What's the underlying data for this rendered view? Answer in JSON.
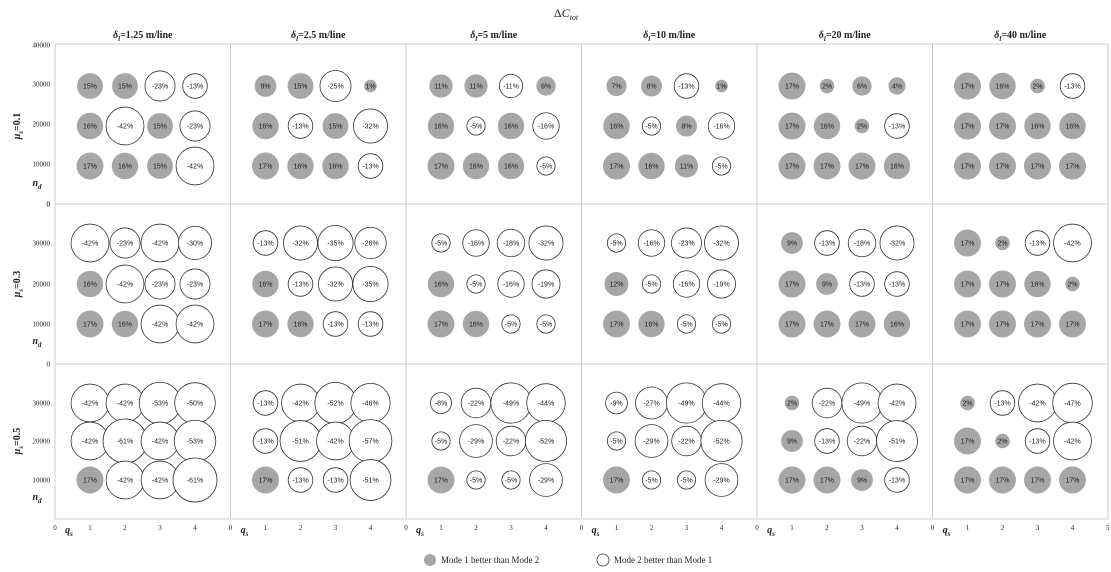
{
  "chart_data": {
    "type": "bubble-grid",
    "title": "ΔC_tot",
    "column_titles": [
      "δl=1.25 m/line",
      "δl=2.5 m/line",
      "δl=5 m/line",
      "δl=10 m/line",
      "δl=20 m/line",
      "δl=40 m/line"
    ],
    "column_title_parts": [
      {
        "sym": "δ",
        "sub": "l",
        "rest": "=1.25 m/line"
      },
      {
        "sym": "δ",
        "sub": "l",
        "rest": "=2.5 m/line"
      },
      {
        "sym": "δ",
        "sub": "l",
        "rest": "=5 m/line"
      },
      {
        "sym": "δ",
        "sub": "l",
        "rest": "=10 m/line"
      },
      {
        "sym": "δ",
        "sub": "l",
        "rest": "=20 m/line"
      },
      {
        "sym": "δ",
        "sub": "l",
        "rest": "=40 m/line"
      }
    ],
    "row_titles": [
      {
        "sym": "μ",
        "sub": "s",
        "rest": "=0.1"
      },
      {
        "sym": "μ",
        "sub": "s",
        "rest": "=0.3"
      },
      {
        "sym": "μ",
        "sub": "s",
        "rest": "=0.5"
      }
    ],
    "xlabel": {
      "sym": "q",
      "sub": "s"
    },
    "ylabel": {
      "sym": "n",
      "sub": "d"
    },
    "x_ticks": [
      0,
      1,
      2,
      3,
      4
    ],
    "x_ticks_last": [
      0,
      1,
      2,
      3,
      4,
      5
    ],
    "xlim": [
      0,
      5
    ],
    "y_ticks_top": [
      "0",
      "10000",
      "20000",
      "30000",
      "40000"
    ],
    "y_ticks": [
      "0",
      "10000",
      "20000",
      "30000"
    ],
    "y_levels": [
      30000,
      20000,
      10000
    ],
    "legend": [
      {
        "label": "Mode 1 better than Mode 2",
        "filled": true
      },
      {
        "label": "Mode 2 better than Mode 1",
        "filled": false
      }
    ],
    "colors": {
      "mode1": "#a6a6a6",
      "mode2": "#ffffff",
      "stroke": "#555555",
      "grid": "#cccccc"
    },
    "values": [
      [
        [
          [
            "15%",
            "15%",
            "-23%",
            "-13%"
          ],
          [
            "16%",
            "-42%",
            "15%",
            "-23%"
          ],
          [
            "17%",
            "16%",
            "15%",
            "-42%"
          ]
        ],
        [
          [
            "9%",
            "15%",
            "-25%",
            "1%"
          ],
          [
            "16%",
            "-13%",
            "15%",
            "-32%"
          ],
          [
            "17%",
            "16%",
            "16%",
            "-13%"
          ]
        ],
        [
          [
            "11%",
            "11%",
            "-11%",
            "6%"
          ],
          [
            "16%",
            "-5%",
            "16%",
            "-16%"
          ],
          [
            "17%",
            "16%",
            "16%",
            "-5%"
          ]
        ],
        [
          [
            "7%",
            "8%",
            "-13%",
            "1%"
          ],
          [
            "16%",
            "-5%",
            "8%",
            "-16%"
          ],
          [
            "17%",
            "16%",
            "11%",
            "-5%"
          ]
        ],
        [
          [
            "17%",
            "2%",
            "6%",
            "4%"
          ],
          [
            "17%",
            "16%",
            "2%",
            "-13%"
          ],
          [
            "17%",
            "17%",
            "17%",
            "16%"
          ]
        ],
        [
          [
            "17%",
            "16%",
            "2%",
            "-13%"
          ],
          [
            "17%",
            "17%",
            "16%",
            "16%"
          ],
          [
            "17%",
            "17%",
            "17%",
            "17%"
          ]
        ]
      ],
      [
        [
          [
            "-42%",
            "-23%",
            "-42%",
            "-30%"
          ],
          [
            "16%",
            "-42%",
            "-23%",
            "-23%"
          ],
          [
            "17%",
            "16%",
            "-42%",
            "-42%"
          ]
        ],
        [
          [
            "-13%",
            "-32%",
            "-35%",
            "-26%"
          ],
          [
            "16%",
            "-13%",
            "-32%",
            "-35%"
          ],
          [
            "17%",
            "16%",
            "-13%",
            "-13%"
          ]
        ],
        [
          [
            "-5%",
            "-16%",
            "-18%",
            "-32%"
          ],
          [
            "16%",
            "-5%",
            "-16%",
            "-19%"
          ],
          [
            "17%",
            "16%",
            "-5%",
            "-5%"
          ]
        ],
        [
          [
            "-5%",
            "-16%",
            "-23%",
            "-32%"
          ],
          [
            "12%",
            "-5%",
            "-16%",
            "-19%"
          ],
          [
            "17%",
            "16%",
            "-5%",
            "-5%"
          ]
        ],
        [
          [
            "9%",
            "-13%",
            "-18%",
            "-32%"
          ],
          [
            "17%",
            "9%",
            "-13%",
            "-13%"
          ],
          [
            "17%",
            "17%",
            "17%",
            "16%"
          ]
        ],
        [
          [
            "17%",
            "2%",
            "-13%",
            "-42%"
          ],
          [
            "17%",
            "17%",
            "16%",
            "2%"
          ],
          [
            "17%",
            "17%",
            "17%",
            "17%"
          ]
        ]
      ],
      [
        [
          [
            "-42%",
            "-42%",
            "-53%",
            "-50%"
          ],
          [
            "-42%",
            "-61%",
            "-42%",
            "-53%"
          ],
          [
            "17%",
            "-42%",
            "-42%",
            "-61%"
          ]
        ],
        [
          [
            "-13%",
            "-42%",
            "-52%",
            "-46%"
          ],
          [
            "-13%",
            "-51%",
            "-42%",
            "-57%"
          ],
          [
            "17%",
            "-13%",
            "-13%",
            "-51%"
          ]
        ],
        [
          [
            "-8%",
            "-22%",
            "-49%",
            "-44%"
          ],
          [
            "-5%",
            "-29%",
            "-22%",
            "-52%"
          ],
          [
            "17%",
            "-5%",
            "-5%",
            "-29%"
          ]
        ],
        [
          [
            "-9%",
            "-27%",
            "-49%",
            "-44%"
          ],
          [
            "-5%",
            "-29%",
            "-22%",
            "-52%"
          ],
          [
            "17%",
            "-5%",
            "-5%",
            "-29%"
          ]
        ],
        [
          [
            "2%",
            "-22%",
            "-49%",
            "-42%"
          ],
          [
            "9%",
            "-13%",
            "-22%",
            "-51%"
          ],
          [
            "17%",
            "17%",
            "9%",
            "-13%"
          ]
        ],
        [
          [
            "2%",
            "-13%",
            "-42%",
            "-47%"
          ],
          [
            "17%",
            "2%",
            "-13%",
            "-42%"
          ],
          [
            "17%",
            "17%",
            "17%",
            "17%"
          ]
        ]
      ]
    ]
  }
}
